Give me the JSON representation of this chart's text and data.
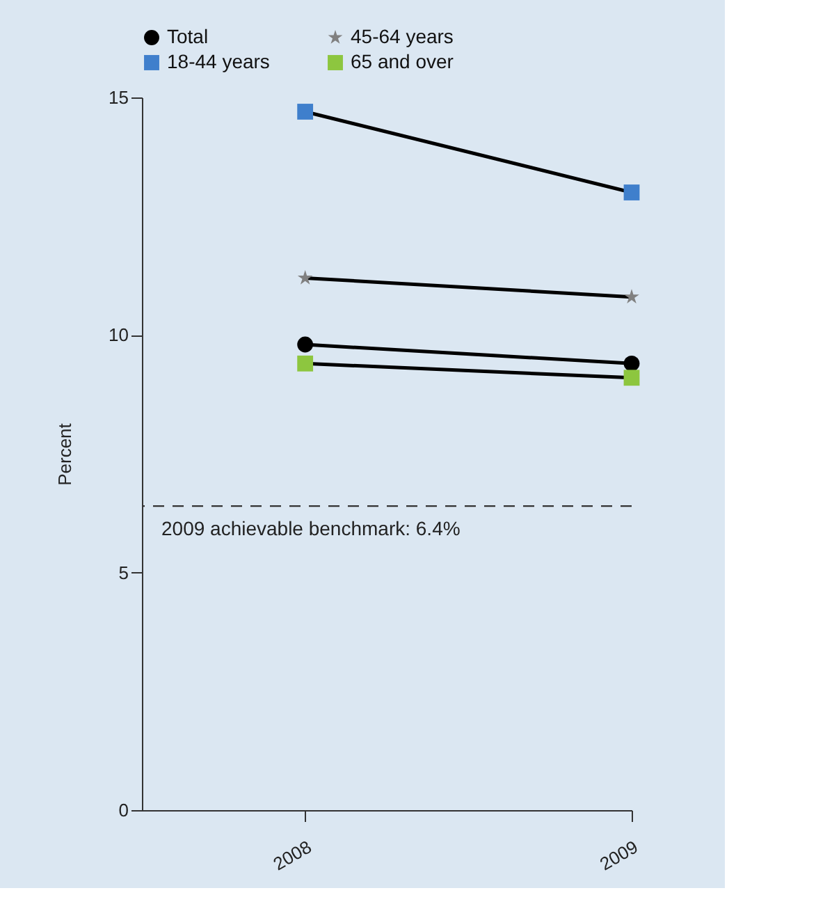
{
  "chart_data": {
    "type": "line",
    "ylabel": "Percent",
    "categories": [
      "2008",
      "2009"
    ],
    "series": [
      {
        "name": "Total",
        "color": "#000000",
        "marker": "circle",
        "values": [
          9.8,
          9.4
        ]
      },
      {
        "name": "45-64 years",
        "color": "#808080",
        "marker": "star",
        "values": [
          11.2,
          10.8
        ]
      },
      {
        "name": "18-44 years",
        "color": "#3f7fcc",
        "marker": "square",
        "values": [
          14.7,
          13.0
        ]
      },
      {
        "name": "65 and over",
        "color": "#8dc63f",
        "marker": "square",
        "values": [
          9.4,
          9.1
        ]
      }
    ],
    "ylim": [
      0,
      15
    ],
    "yticks": [
      0,
      5,
      10,
      15
    ],
    "grid": false,
    "legend": "top",
    "line_style": "solid",
    "ref_lines": [
      {
        "axis": "y",
        "value": 6.4,
        "label": "2009 achievable benchmark: 6.4%",
        "line_style": "dashed",
        "color": "#333333"
      }
    ]
  }
}
